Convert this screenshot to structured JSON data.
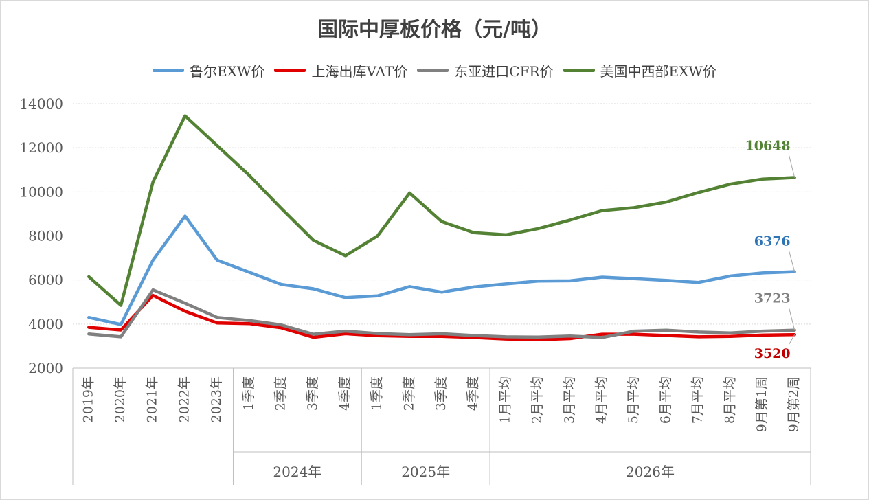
{
  "chart_data": {
    "type": "line",
    "title": "国际中厚板价格（元/吨）",
    "ylim": [
      2000,
      14000
    ],
    "yticks": [
      "2000",
      "4000",
      "6000",
      "8000",
      "10000",
      "12000",
      "14000"
    ],
    "grid": true,
    "legend_position": "top",
    "categories": [
      "2019年",
      "2020年",
      "2021年",
      "2022年",
      "2023年",
      "1季度",
      "2季度",
      "3季度",
      "4季度",
      "1季度",
      "2季度",
      "3季度",
      "4季度",
      "1月平均",
      "2月平均",
      "3月平均",
      "4月平均",
      "5月平均",
      "6月平均",
      "7月平均",
      "8月平均",
      "9月第1周",
      "9月第2周"
    ],
    "groups": [
      {
        "label": "2024年",
        "start": 5,
        "end": 8
      },
      {
        "label": "2025年",
        "start": 9,
        "end": 12
      },
      {
        "label": "2026年",
        "start": 13,
        "end": 22
      }
    ],
    "series": [
      {
        "name": "鲁尔EXW价",
        "color": "#5b9bd5",
        "end_label": "6376",
        "values": [
          4300,
          3980,
          6900,
          8900,
          6900,
          6350,
          5800,
          5600,
          5200,
          5280,
          5700,
          5450,
          5680,
          5820,
          5950,
          5960,
          6130,
          6060,
          5980,
          5890,
          6180,
          6320,
          6376
        ]
      },
      {
        "name": "上海出库VAT价",
        "color": "#e00000",
        "end_label": "3520",
        "values": [
          3850,
          3730,
          5300,
          4580,
          4050,
          4020,
          3830,
          3400,
          3560,
          3470,
          3440,
          3440,
          3390,
          3320,
          3290,
          3340,
          3540,
          3540,
          3480,
          3420,
          3440,
          3500,
          3520
        ]
      },
      {
        "name": "东亚进口CFR价",
        "color": "#808080",
        "end_label": "3723",
        "values": [
          3550,
          3420,
          5550,
          4950,
          4300,
          4160,
          3960,
          3540,
          3680,
          3570,
          3520,
          3560,
          3480,
          3420,
          3410,
          3460,
          3390,
          3680,
          3720,
          3640,
          3600,
          3680,
          3723
        ]
      },
      {
        "name": "美国中西部EXW价",
        "color": "#548235",
        "end_label": "10648",
        "values": [
          6150,
          4850,
          10450,
          13450,
          12100,
          10750,
          9250,
          7800,
          7100,
          8000,
          9950,
          8650,
          8150,
          8050,
          8330,
          8720,
          9150,
          9280,
          9540,
          9970,
          10350,
          10580,
          10648
        ]
      }
    ]
  }
}
